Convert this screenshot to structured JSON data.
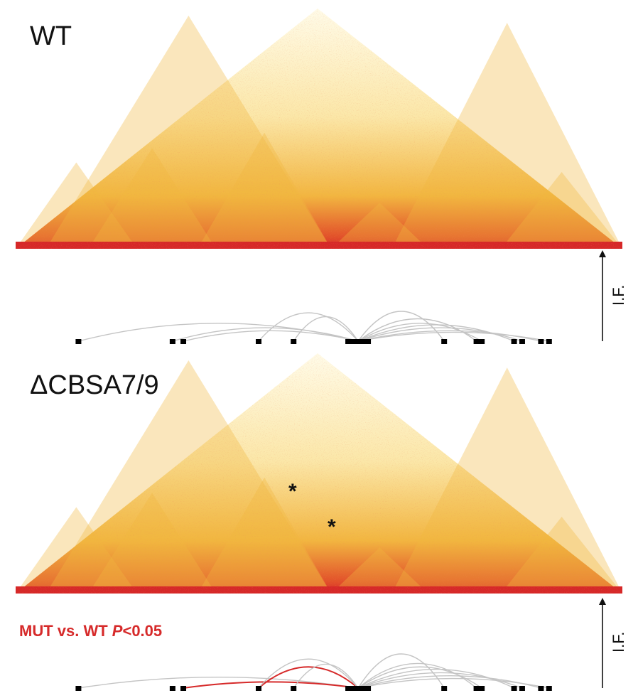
{
  "panels": [
    {
      "title": "WT",
      "axis_label": "I.F.",
      "significance_label": null,
      "markers": [
        "*",
        "*"
      ]
    },
    {
      "title": "ΔCBSA7/9",
      "axis_label": "I.F.",
      "significance_label": {
        "prefix": "MUT vs. WT ",
        "p": "P",
        "suffix": "<0.05"
      },
      "markers": [
        "*",
        "*"
      ]
    }
  ],
  "colors": {
    "heat_high": "#d62828",
    "heat_mid": "#f2b640",
    "heat_low": "#fbf0c8",
    "background": "#fffbe8",
    "arc_default": "#c4c4c4",
    "arc_significant": "#d62a2a",
    "anchor": "#000000",
    "axis": "#111111"
  },
  "anchors": [
    0.06,
    0.235,
    0.255,
    0.395,
    0.46,
    0.57,
    0.59,
    0.74,
    0.8,
    0.81,
    0.87,
    0.885,
    0.92,
    0.935
  ],
  "viewpoint": 0.58,
  "arcs_wt": [
    {
      "from": 0.06,
      "to": 0.58,
      "h": 0.6
    },
    {
      "from": 0.235,
      "to": 0.58,
      "h": 0.45
    },
    {
      "from": 0.255,
      "to": 0.58,
      "h": 0.35
    },
    {
      "from": 0.395,
      "to": 0.58,
      "h": 0.95
    },
    {
      "from": 0.46,
      "to": 0.58,
      "h": 0.82
    },
    {
      "from": 0.58,
      "to": 0.74,
      "h": 1.0
    },
    {
      "from": 0.58,
      "to": 0.8,
      "h": 0.75
    },
    {
      "from": 0.58,
      "to": 0.81,
      "h": 0.6
    },
    {
      "from": 0.58,
      "to": 0.87,
      "h": 0.55
    },
    {
      "from": 0.58,
      "to": 0.885,
      "h": 0.45
    },
    {
      "from": 0.58,
      "to": 0.92,
      "h": 0.35
    },
    {
      "from": 0.58,
      "to": 0.935,
      "h": 0.3
    }
  ],
  "arcs_mut": [
    {
      "from": 0.06,
      "to": 0.58,
      "h": 0.32,
      "sig": false
    },
    {
      "from": 0.255,
      "to": 0.58,
      "h": 0.18,
      "sig": true
    },
    {
      "from": 0.395,
      "to": 0.58,
      "h": 0.62,
      "sig": true
    },
    {
      "from": 0.395,
      "to": 0.58,
      "h": 0.85,
      "sig": false
    },
    {
      "from": 0.46,
      "to": 0.58,
      "h": 0.7,
      "sig": false
    },
    {
      "from": 0.58,
      "to": 0.74,
      "h": 1.0,
      "sig": false
    },
    {
      "from": 0.58,
      "to": 0.8,
      "h": 0.72,
      "sig": false
    },
    {
      "from": 0.58,
      "to": 0.81,
      "h": 0.62,
      "sig": false
    },
    {
      "from": 0.58,
      "to": 0.87,
      "h": 0.55,
      "sig": false
    },
    {
      "from": 0.58,
      "to": 0.885,
      "h": 0.45,
      "sig": false
    },
    {
      "from": 0.58,
      "to": 0.92,
      "h": 0.36,
      "sig": false
    },
    {
      "from": 0.58,
      "to": 0.935,
      "h": 0.28,
      "sig": false
    }
  ]
}
